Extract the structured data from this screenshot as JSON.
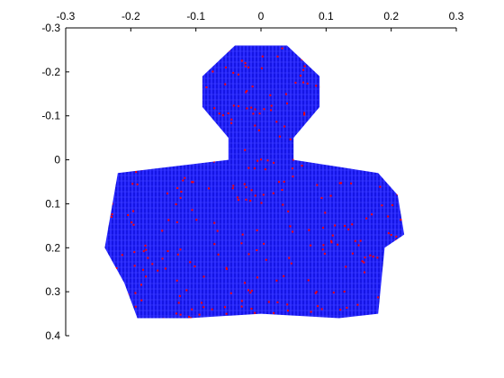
{
  "chart_data": {
    "type": "scatter",
    "title": "",
    "xlabel": "",
    "ylabel": "",
    "xlim": [
      -0.3,
      0.3
    ],
    "ylim": [
      -0.3,
      0.4
    ],
    "y_axis_reversed": true,
    "x_axis_position": "top",
    "y_axis_position": "left",
    "grid": false,
    "legend": "none",
    "x_ticks": [
      -0.3,
      -0.2,
      -0.1,
      0,
      0.1,
      0.2,
      0.3
    ],
    "y_ticks": [
      -0.3,
      -0.2,
      -0.1,
      0,
      0.1,
      0.2,
      0.3,
      0.4
    ],
    "x_tick_labels": [
      "-0.3",
      "-0.2",
      "-0.1",
      "0",
      "0.1",
      "0.2",
      "0.3"
    ],
    "y_tick_labels": [
      "-0.3",
      "-0.2",
      "-0.1",
      "0",
      "0.1",
      "0.2",
      "0.3",
      "0.4"
    ],
    "series": [
      {
        "marker": "dot",
        "color": "#0000ff",
        "description_points": [
          [
            -0.04,
            -0.26
          ],
          [
            0.04,
            -0.26
          ],
          [
            0.09,
            -0.19
          ],
          [
            0.09,
            -0.12
          ],
          [
            0.05,
            -0.05
          ],
          [
            0.05,
            0.0
          ],
          [
            0.18,
            0.03
          ],
          [
            0.21,
            0.08
          ],
          [
            0.22,
            0.17
          ],
          [
            0.19,
            0.2
          ],
          [
            0.18,
            0.35
          ],
          [
            0.12,
            0.36
          ],
          [
            0.0,
            0.35
          ],
          [
            -0.11,
            0.36
          ],
          [
            -0.19,
            0.36
          ],
          [
            -0.21,
            0.28
          ],
          [
            -0.24,
            0.2
          ],
          [
            -0.22,
            0.03
          ],
          [
            -0.05,
            0.0
          ],
          [
            -0.05,
            -0.05
          ],
          [
            -0.09,
            -0.12
          ],
          [
            -0.09,
            -0.19
          ]
        ]
      },
      {
        "marker": "dot",
        "color": "#ff0000",
        "points": "sparse"
      }
    ]
  }
}
